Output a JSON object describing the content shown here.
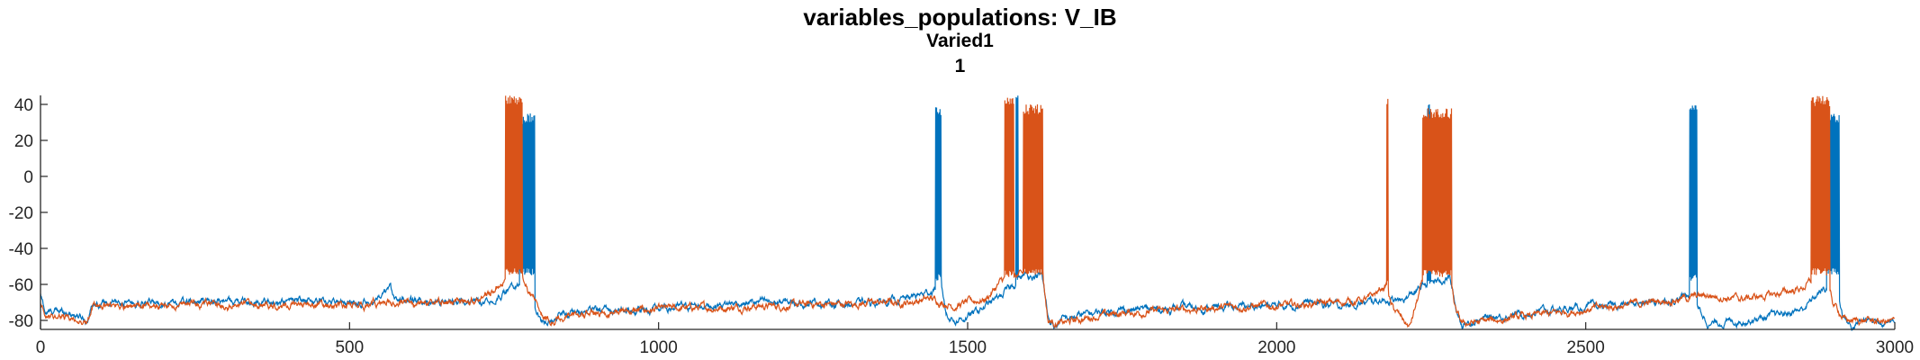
{
  "chart_data": {
    "type": "line",
    "title": "variables_populations: V_IB",
    "subtitles": [
      "Varied1",
      "1"
    ],
    "xlabel": "",
    "ylabel": "",
    "xlim": [
      0,
      3000
    ],
    "ylim": [
      -85,
      45
    ],
    "xticks": [
      0,
      500,
      1000,
      1500,
      2000,
      2500,
      3000
    ],
    "yticks": [
      40,
      20,
      0,
      -20,
      -40,
      -60,
      -80
    ],
    "grid": false,
    "legend": "none",
    "series": [
      {
        "color": "#0072BD",
        "baseline": [
          [
            0,
            -66
          ],
          [
            8,
            -76
          ],
          [
            20,
            -75
          ],
          [
            40,
            -75
          ],
          [
            60,
            -77
          ],
          [
            75,
            -80
          ],
          [
            85,
            -70
          ],
          [
            100,
            -70
          ],
          [
            150,
            -71
          ],
          [
            200,
            -70
          ],
          [
            250,
            -70
          ],
          [
            300,
            -69
          ],
          [
            350,
            -70
          ],
          [
            400,
            -70
          ],
          [
            450,
            -69
          ],
          [
            500,
            -70
          ],
          [
            550,
            -69
          ],
          [
            565,
            -63
          ],
          [
            580,
            -68
          ],
          [
            600,
            -70
          ],
          [
            650,
            -69
          ],
          [
            700,
            -70
          ],
          [
            745,
            -66
          ],
          [
            755,
            -63
          ],
          [
            790,
            -60
          ],
          [
            800,
            -72
          ],
          [
            810,
            -82
          ],
          [
            830,
            -78
          ],
          [
            850,
            -76
          ],
          [
            900,
            -75
          ],
          [
            950,
            -74
          ],
          [
            1000,
            -74
          ],
          [
            1050,
            -72
          ],
          [
            1100,
            -71
          ],
          [
            1150,
            -70
          ],
          [
            1200,
            -70
          ],
          [
            1250,
            -70
          ],
          [
            1300,
            -71
          ],
          [
            1350,
            -70
          ],
          [
            1400,
            -68
          ],
          [
            1440,
            -64
          ],
          [
            1458,
            -60
          ],
          [
            1465,
            -76
          ],
          [
            1480,
            -80
          ],
          [
            1500,
            -78
          ],
          [
            1530,
            -72
          ],
          [
            1555,
            -66
          ],
          [
            1575,
            -60
          ],
          [
            1595,
            -55
          ],
          [
            1620,
            -55
          ],
          [
            1630,
            -78
          ],
          [
            1640,
            -84
          ],
          [
            1650,
            -80
          ],
          [
            1700,
            -76
          ],
          [
            1750,
            -74
          ],
          [
            1800,
            -74
          ],
          [
            1850,
            -73
          ],
          [
            1900,
            -73
          ],
          [
            1950,
            -72
          ],
          [
            2000,
            -72
          ],
          [
            2050,
            -70
          ],
          [
            2100,
            -72
          ],
          [
            2150,
            -70
          ],
          [
            2175,
            -68
          ],
          [
            2200,
            -70
          ],
          [
            2225,
            -64
          ],
          [
            2240,
            -60
          ],
          [
            2280,
            -56
          ],
          [
            2290,
            -74
          ],
          [
            2300,
            -82
          ],
          [
            2350,
            -78
          ],
          [
            2400,
            -76
          ],
          [
            2450,
            -74
          ],
          [
            2500,
            -73
          ],
          [
            2550,
            -72
          ],
          [
            2600,
            -70
          ],
          [
            2650,
            -68
          ],
          [
            2670,
            -65
          ],
          [
            2682,
            -74
          ],
          [
            2700,
            -82
          ],
          [
            2750,
            -80
          ],
          [
            2800,
            -78
          ],
          [
            2850,
            -74
          ],
          [
            2880,
            -64
          ],
          [
            2905,
            -60
          ],
          [
            2915,
            -76
          ],
          [
            2930,
            -84
          ],
          [
            2950,
            -80
          ],
          [
            3000,
            -80
          ]
        ],
        "bursts": [
          {
            "start": 775,
            "end": 800,
            "peak": 35,
            "trough": -55
          },
          {
            "start": 1448,
            "end": 1458,
            "peak": 40,
            "trough": -58
          },
          {
            "start": 1578,
            "end": 1582,
            "peak": 45,
            "trough": -58
          },
          {
            "start": 2244,
            "end": 2249,
            "peak": 42,
            "trough": -60
          },
          {
            "start": 2668,
            "end": 2680,
            "peak": 40,
            "trough": -58
          },
          {
            "start": 2890,
            "end": 2910,
            "peak": 35,
            "trough": -55
          }
        ]
      },
      {
        "color": "#D95319",
        "baseline": [
          [
            0,
            -70
          ],
          [
            8,
            -80
          ],
          [
            20,
            -78
          ],
          [
            40,
            -78
          ],
          [
            60,
            -80
          ],
          [
            75,
            -82
          ],
          [
            85,
            -72
          ],
          [
            100,
            -72
          ],
          [
            150,
            -72
          ],
          [
            200,
            -72
          ],
          [
            250,
            -71
          ],
          [
            300,
            -72
          ],
          [
            350,
            -72
          ],
          [
            400,
            -71
          ],
          [
            450,
            -71
          ],
          [
            500,
            -72
          ],
          [
            550,
            -70
          ],
          [
            600,
            -71
          ],
          [
            650,
            -70
          ],
          [
            700,
            -70
          ],
          [
            745,
            -60
          ],
          [
            760,
            -55
          ],
          [
            785,
            -58
          ],
          [
            790,
            -64
          ],
          [
            800,
            -68
          ],
          [
            815,
            -78
          ],
          [
            830,
            -80
          ],
          [
            850,
            -78
          ],
          [
            900,
            -76
          ],
          [
            950,
            -75
          ],
          [
            1000,
            -74
          ],
          [
            1050,
            -73
          ],
          [
            1100,
            -73
          ],
          [
            1150,
            -72
          ],
          [
            1200,
            -72
          ],
          [
            1250,
            -71
          ],
          [
            1300,
            -71
          ],
          [
            1350,
            -70
          ],
          [
            1400,
            -70
          ],
          [
            1440,
            -68
          ],
          [
            1460,
            -70
          ],
          [
            1480,
            -72
          ],
          [
            1500,
            -70
          ],
          [
            1530,
            -68
          ],
          [
            1555,
            -58
          ],
          [
            1570,
            -55
          ],
          [
            1600,
            -55
          ],
          [
            1622,
            -55
          ],
          [
            1630,
            -80
          ],
          [
            1650,
            -82
          ],
          [
            1700,
            -78
          ],
          [
            1750,
            -76
          ],
          [
            1800,
            -75
          ],
          [
            1850,
            -74
          ],
          [
            1900,
            -73
          ],
          [
            1950,
            -72
          ],
          [
            2000,
            -72
          ],
          [
            2050,
            -71
          ],
          [
            2100,
            -70
          ],
          [
            2150,
            -68
          ],
          [
            2178,
            -60
          ],
          [
            2185,
            -72
          ],
          [
            2200,
            -78
          ],
          [
            2215,
            -84
          ],
          [
            2235,
            -60
          ],
          [
            2280,
            -56
          ],
          [
            2290,
            -76
          ],
          [
            2300,
            -82
          ],
          [
            2350,
            -80
          ],
          [
            2400,
            -78
          ],
          [
            2450,
            -76
          ],
          [
            2500,
            -74
          ],
          [
            2550,
            -72
          ],
          [
            2600,
            -70
          ],
          [
            2650,
            -68
          ],
          [
            2700,
            -66
          ],
          [
            2750,
            -68
          ],
          [
            2800,
            -66
          ],
          [
            2850,
            -62
          ],
          [
            2870,
            -57
          ],
          [
            2890,
            -56
          ],
          [
            2900,
            -70
          ],
          [
            2920,
            -80
          ],
          [
            2950,
            -80
          ],
          [
            3000,
            -81
          ]
        ],
        "bursts": [
          {
            "start": 752,
            "end": 780,
            "peak": 45,
            "trough": -55
          },
          {
            "start": 1560,
            "end": 1575,
            "peak": 45,
            "trough": -56
          },
          {
            "start": 1590,
            "end": 1622,
            "peak": 40,
            "trough": -55
          },
          {
            "start": 2178,
            "end": 2181,
            "peak": 45,
            "trough": -62
          },
          {
            "start": 2236,
            "end": 2283,
            "peak": 38,
            "trough": -56
          },
          {
            "start": 2865,
            "end": 2895,
            "peak": 45,
            "trough": -55
          }
        ]
      }
    ]
  }
}
